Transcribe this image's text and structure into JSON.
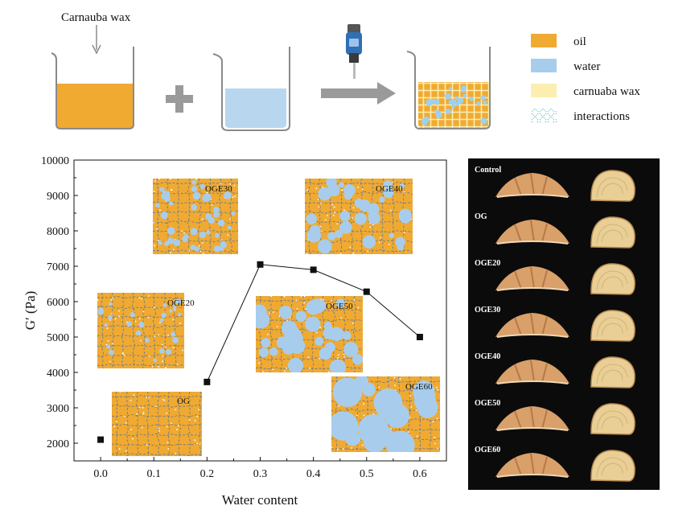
{
  "top_scheme": {
    "additive_label": "Carnauba wax",
    "legend": [
      {
        "label": "oil",
        "color": "#f0aa32",
        "icon": "orange-swatch"
      },
      {
        "label": "water",
        "color": "#a8cdec",
        "icon": "blue-swatch"
      },
      {
        "label": "carnuaba wax",
        "color": "#fbeeb0",
        "icon": "yellow-swatch"
      },
      {
        "label": "interactions",
        "icon": "dotted-network-icon"
      }
    ],
    "colors": {
      "oil": "#f0aa32",
      "water": "#a8cdec",
      "wax": "#fbeeb0",
      "arrow": "#9a9a9a",
      "glass": "#8a8a8a",
      "mixer": "#2f6fb5"
    }
  },
  "chart_data": {
    "type": "scatter-line",
    "xlabel": "Water content",
    "ylabel": "G′ (Pa)",
    "xlim": [
      -0.05,
      0.65
    ],
    "ylim": [
      1500,
      10000
    ],
    "x_ticks": [
      "0.0",
      "0.1",
      "0.2",
      "0.3",
      "0.4",
      "0.5",
      "0.6"
    ],
    "y_ticks": [
      "2000",
      "3000",
      "4000",
      "5000",
      "6000",
      "7000",
      "8000",
      "9000",
      "10000"
    ],
    "x_tick_values": [
      0.0,
      0.1,
      0.2,
      0.3,
      0.4,
      0.5,
      0.6
    ],
    "y_tick_values": [
      2000,
      3000,
      4000,
      5000,
      6000,
      7000,
      8000,
      9000,
      10000
    ],
    "points": [
      {
        "x": 0.0,
        "y": 2100
      },
      {
        "x": 0.2,
        "y": 3730
      },
      {
        "x": 0.3,
        "y": 7050
      },
      {
        "x": 0.4,
        "y": 6900
      },
      {
        "x": 0.5,
        "y": 6280
      },
      {
        "x": 0.6,
        "y": 5000
      }
    ],
    "insets": [
      {
        "label": "OG",
        "water_fraction": 0.0
      },
      {
        "label": "OGE20",
        "water_fraction": 0.2
      },
      {
        "label": "OGE30",
        "water_fraction": 0.3
      },
      {
        "label": "OGE40",
        "water_fraction": 0.4
      },
      {
        "label": "OGE50",
        "water_fraction": 0.5
      },
      {
        "label": "OGE60",
        "water_fraction": 0.6
      }
    ]
  },
  "photo_panel": {
    "rows": [
      {
        "label": "Control"
      },
      {
        "label": "OG"
      },
      {
        "label": "OGE20"
      },
      {
        "label": "OGE30"
      },
      {
        "label": "OGE40"
      },
      {
        "label": "OGE50"
      },
      {
        "label": "OGE60"
      }
    ]
  }
}
